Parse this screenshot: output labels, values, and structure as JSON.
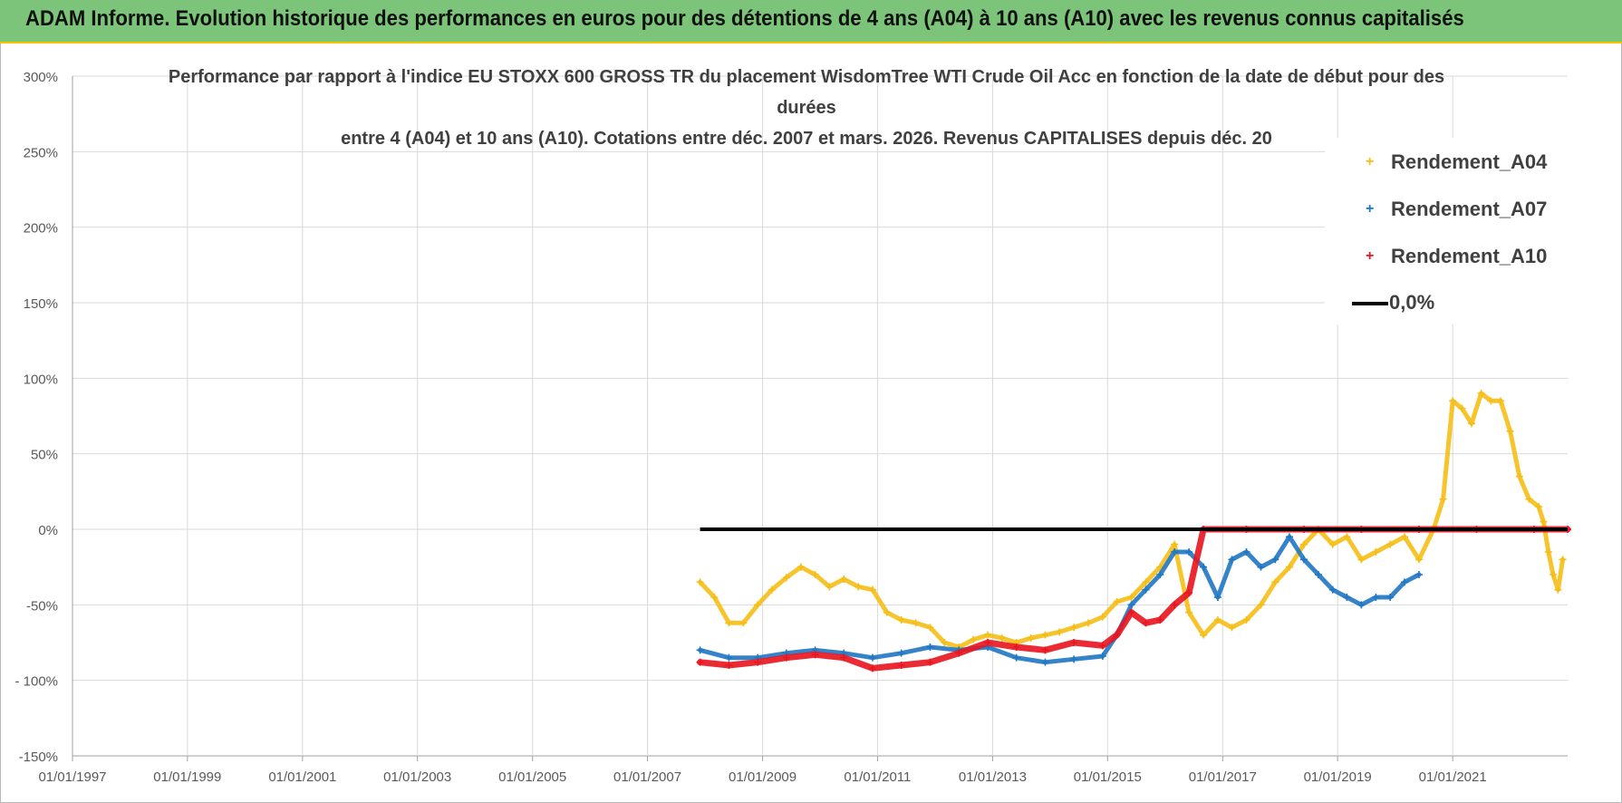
{
  "header": {
    "text": "ADAM Informe. Evolution historique des performances en euros pour des détentions de 4 ans (A04) à 10 ans (A10) avec les revenus connus capitalisés"
  },
  "colors": {
    "header_bg": "#7cc47a",
    "header_border": "#f2c300",
    "A04": "#f5be16",
    "A07": "#1f77c4",
    "A10": "#e8141e",
    "zero": "#000000"
  },
  "chart_data": {
    "type": "scatter",
    "title": [
      "Performance par rapport à l'indice EU STOXX 600 GROSS TR  du placement WisdomTree WTI Crude Oil Acc en fonction de la date de début pour des",
      "durées",
      "entre 4 (A04) et 10 ans (A10).  Cotations entre déc. 2007 et mars. 2026. Revenus CAPITALISES depuis déc. 20"
    ],
    "x_ticks": [
      "01/01/1997",
      "01/01/1999",
      "01/01/2001",
      "01/01/2003",
      "01/01/2005",
      "01/01/2007",
      "01/01/2009",
      "01/01/2011",
      "01/01/2013",
      "01/01/2015",
      "01/01/2017",
      "01/01/2019",
      "01/01/2021"
    ],
    "y_ticks": [
      "300%",
      "250%",
      "200%",
      "150%",
      "100%",
      "50%",
      "0%",
      "-50%",
      "- 100%",
      "-150%"
    ],
    "xlim": [
      "1997-01-01",
      "2023-01-01"
    ],
    "ylim": [
      -150,
      300
    ],
    "grid": true,
    "legend_position": "top-right",
    "legend": [
      "Rendement_A04",
      "Rendement_A07",
      "Rendement_A10",
      "0,0%"
    ],
    "series": [
      {
        "name": "Rendement_A04",
        "points": [
          [
            "2007-12-01",
            -35
          ],
          [
            "2008-03-01",
            -45
          ],
          [
            "2008-06-01",
            -62
          ],
          [
            "2008-09-01",
            -62
          ],
          [
            "2008-12-01",
            -50
          ],
          [
            "2009-03-01",
            -40
          ],
          [
            "2009-06-01",
            -32
          ],
          [
            "2009-09-01",
            -25
          ],
          [
            "2009-12-01",
            -30
          ],
          [
            "2010-03-01",
            -38
          ],
          [
            "2010-06-01",
            -33
          ],
          [
            "2010-09-01",
            -38
          ],
          [
            "2010-12-01",
            -40
          ],
          [
            "2011-03-01",
            -55
          ],
          [
            "2011-06-01",
            -60
          ],
          [
            "2011-09-01",
            -62
          ],
          [
            "2011-12-01",
            -65
          ],
          [
            "2012-03-01",
            -75
          ],
          [
            "2012-06-01",
            -78
          ],
          [
            "2012-09-01",
            -73
          ],
          [
            "2012-12-01",
            -70
          ],
          [
            "2013-03-01",
            -72
          ],
          [
            "2013-06-01",
            -75
          ],
          [
            "2013-09-01",
            -72
          ],
          [
            "2013-12-01",
            -70
          ],
          [
            "2014-03-01",
            -68
          ],
          [
            "2014-06-01",
            -65
          ],
          [
            "2014-09-01",
            -62
          ],
          [
            "2014-12-01",
            -58
          ],
          [
            "2015-03-01",
            -48
          ],
          [
            "2015-06-01",
            -45
          ],
          [
            "2015-09-01",
            -35
          ],
          [
            "2015-12-01",
            -25
          ],
          [
            "2016-03-01",
            -10
          ],
          [
            "2016-06-01",
            -55
          ],
          [
            "2016-09-01",
            -70
          ],
          [
            "2016-12-01",
            -60
          ],
          [
            "2017-03-01",
            -65
          ],
          [
            "2017-06-01",
            -60
          ],
          [
            "2017-09-01",
            -50
          ],
          [
            "2017-12-01",
            -35
          ],
          [
            "2018-03-01",
            -25
          ],
          [
            "2018-06-01",
            -10
          ],
          [
            "2018-09-01",
            0
          ],
          [
            "2018-12-01",
            -10
          ],
          [
            "2019-03-01",
            -5
          ],
          [
            "2019-06-01",
            -20
          ],
          [
            "2019-09-01",
            -15
          ],
          [
            "2019-12-01",
            -10
          ],
          [
            "2020-03-01",
            -5
          ],
          [
            "2020-06-01",
            -20
          ],
          [
            "2020-09-01",
            0
          ],
          [
            "2020-11-01",
            20
          ],
          [
            "2021-01-01",
            85
          ],
          [
            "2021-03-01",
            80
          ],
          [
            "2021-05-01",
            70
          ],
          [
            "2021-07-01",
            90
          ],
          [
            "2021-09-01",
            85
          ],
          [
            "2021-11-01",
            85
          ],
          [
            "2022-01-01",
            65
          ],
          [
            "2022-03-01",
            35
          ],
          [
            "2022-05-01",
            20
          ],
          [
            "2022-07-01",
            15
          ],
          [
            "2022-08-01",
            5
          ],
          [
            "2022-09-01",
            -15
          ],
          [
            "2022-10-01",
            -30
          ],
          [
            "2022-11-01",
            -40
          ],
          [
            "2022-12-01",
            -20
          ]
        ]
      },
      {
        "name": "Rendement_A07",
        "points": [
          [
            "2007-12-01",
            -80
          ],
          [
            "2008-06-01",
            -85
          ],
          [
            "2008-12-01",
            -85
          ],
          [
            "2009-06-01",
            -82
          ],
          [
            "2009-12-01",
            -80
          ],
          [
            "2010-06-01",
            -82
          ],
          [
            "2010-12-01",
            -85
          ],
          [
            "2011-06-01",
            -82
          ],
          [
            "2011-12-01",
            -78
          ],
          [
            "2012-06-01",
            -80
          ],
          [
            "2012-12-01",
            -78
          ],
          [
            "2013-06-01",
            -85
          ],
          [
            "2013-12-01",
            -88
          ],
          [
            "2014-06-01",
            -86
          ],
          [
            "2014-12-01",
            -84
          ],
          [
            "2015-03-01",
            -70
          ],
          [
            "2015-06-01",
            -50
          ],
          [
            "2015-09-01",
            -40
          ],
          [
            "2015-12-01",
            -30
          ],
          [
            "2016-03-01",
            -15
          ],
          [
            "2016-06-01",
            -15
          ],
          [
            "2016-09-01",
            -25
          ],
          [
            "2016-12-01",
            -45
          ],
          [
            "2017-03-01",
            -20
          ],
          [
            "2017-06-01",
            -15
          ],
          [
            "2017-09-01",
            -25
          ],
          [
            "2017-12-01",
            -20
          ],
          [
            "2018-03-01",
            -5
          ],
          [
            "2018-06-01",
            -20
          ],
          [
            "2018-09-01",
            -30
          ],
          [
            "2018-12-01",
            -40
          ],
          [
            "2019-03-01",
            -45
          ],
          [
            "2019-06-01",
            -50
          ],
          [
            "2019-09-01",
            -45
          ],
          [
            "2019-12-01",
            -45
          ],
          [
            "2020-03-01",
            -35
          ],
          [
            "2020-06-01",
            -30
          ]
        ]
      },
      {
        "name": "Rendement_A10",
        "points": [
          [
            "2007-12-01",
            -88
          ],
          [
            "2008-06-01",
            -90
          ],
          [
            "2008-12-01",
            -88
          ],
          [
            "2009-06-01",
            -85
          ],
          [
            "2009-12-01",
            -83
          ],
          [
            "2010-06-01",
            -85
          ],
          [
            "2010-12-01",
            -92
          ],
          [
            "2011-06-01",
            -90
          ],
          [
            "2011-12-01",
            -88
          ],
          [
            "2012-06-01",
            -82
          ],
          [
            "2012-12-01",
            -75
          ],
          [
            "2013-06-01",
            -78
          ],
          [
            "2013-12-01",
            -80
          ],
          [
            "2014-06-01",
            -75
          ],
          [
            "2014-12-01",
            -77
          ],
          [
            "2015-03-01",
            -70
          ],
          [
            "2015-06-01",
            -55
          ],
          [
            "2015-09-01",
            -62
          ],
          [
            "2015-12-01",
            -60
          ],
          [
            "2016-03-01",
            -50
          ],
          [
            "2016-06-01",
            -42
          ],
          [
            "2016-09-01",
            0
          ],
          [
            "2017-06-01",
            0
          ],
          [
            "2018-06-01",
            0
          ],
          [
            "2019-06-01",
            0
          ],
          [
            "2020-06-01",
            0
          ],
          [
            "2021-06-01",
            0
          ],
          [
            "2022-06-01",
            0
          ],
          [
            "2023-01-01",
            0
          ]
        ]
      },
      {
        "name": "0,0%",
        "x_range": [
          "2007-12-01",
          "2023-01-01"
        ],
        "y": 0
      }
    ]
  }
}
